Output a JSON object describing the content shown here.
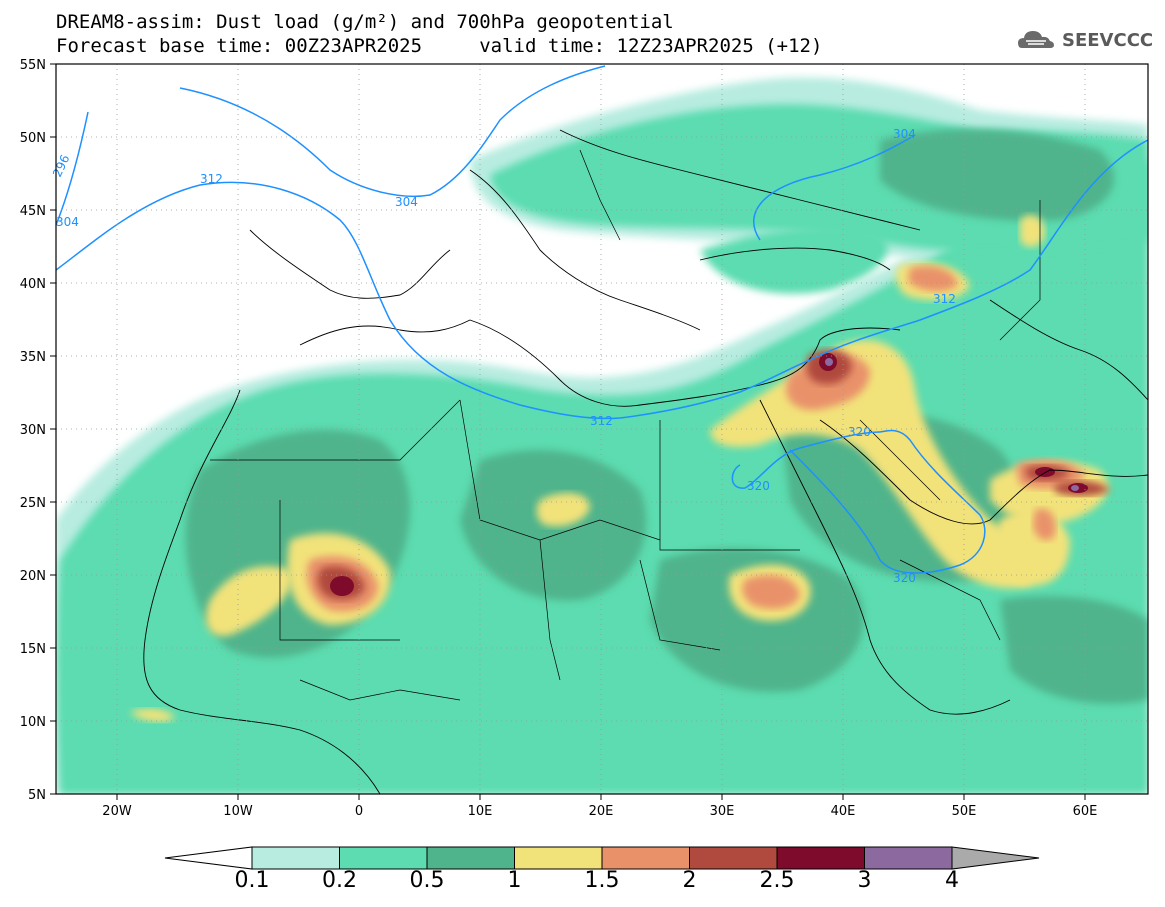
{
  "header": {
    "title_line1": "DREAM8-assim: Dust load (g/m²) and 700hPa geopotential",
    "title_line2": "Forecast base time: 00Z23APR2025     valid time: 12Z23APR2025 (+12)",
    "logo_text": "SEEVCCC",
    "logo_icon": "cloud-icon"
  },
  "map": {
    "lon_range": [
      -25,
      65
    ],
    "lat_range": [
      5,
      55
    ],
    "x_ticks": [
      "20W",
      "10W",
      "0",
      "10E",
      "20E",
      "30E",
      "40E",
      "50E",
      "60E"
    ],
    "y_ticks": [
      "55N",
      "50N",
      "45N",
      "40N",
      "35N",
      "30N",
      "25N",
      "20N",
      "15N",
      "10N",
      "5N"
    ],
    "contour_labels": [
      "296",
      "304",
      "312",
      "304",
      "312",
      "312",
      "320",
      "320",
      "320",
      "304"
    ],
    "contour_color": "#1e90ff",
    "grid": "dotted"
  },
  "colorbar": {
    "ticks": [
      "0.1",
      "0.2",
      "0.5",
      "1",
      "1.5",
      "2",
      "2.5",
      "3",
      "4"
    ],
    "colors": [
      "#b8ece0",
      "#5cdcb0",
      "#4fb48c",
      "#f2e27a",
      "#e9926a",
      "#b04a3e",
      "#7e0a2c",
      "#8c6aa0"
    ],
    "under_color": "#ffffff",
    "over_color": "#aaaaaa"
  }
}
